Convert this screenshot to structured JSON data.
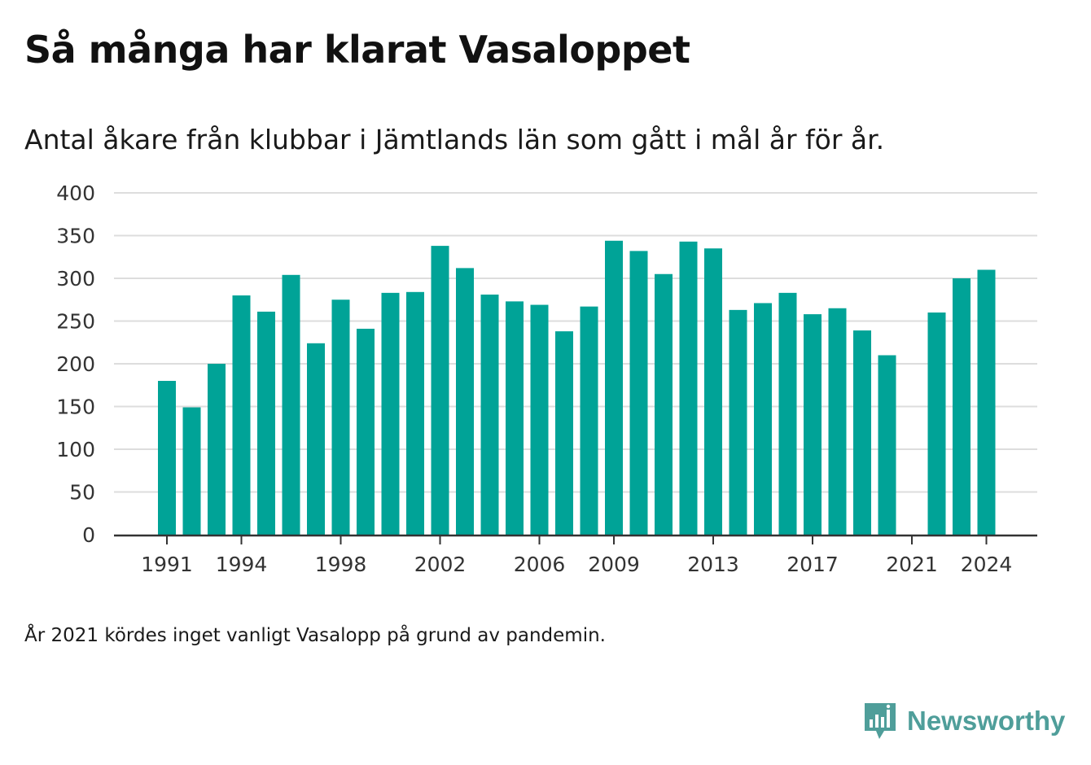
{
  "title": "Så många har klarat Vasaloppet",
  "subtitle": "Antal åkare från klubbar i Jämtlands län som gått i mål år för år.",
  "note": "År 2021 kördes inget vanligt Vasalopp på grund av pandemin.",
  "brand": {
    "name": "Newsworthy",
    "icon": "bar-chart-speech-bubble-icon"
  },
  "colors": {
    "bar": "#00a397",
    "grid": "#dddddd",
    "axis": "#333333",
    "brand": "#4f9e9a"
  },
  "chart_data": {
    "type": "bar",
    "title": "Så många har klarat Vasaloppet",
    "subtitle": "Antal åkare från klubbar i Jämtlands län som gått i mål år för år.",
    "xlabel": "",
    "ylabel": "",
    "ylim": [
      0,
      400
    ],
    "yticks": [
      0,
      50,
      100,
      150,
      200,
      250,
      300,
      350,
      400
    ],
    "xtick_labels": [
      "1991",
      "1994",
      "1998",
      "2002",
      "2006",
      "2009",
      "2013",
      "2017",
      "2021",
      "2024"
    ],
    "grid": true,
    "categories": [
      "1991",
      "1992",
      "1993",
      "1994",
      "1995",
      "1996",
      "1997",
      "1998",
      "1999",
      "2000",
      "2001",
      "2002",
      "2003",
      "2004",
      "2005",
      "2006",
      "2007",
      "2008",
      "2009",
      "2010",
      "2011",
      "2012",
      "2013",
      "2014",
      "2015",
      "2016",
      "2017",
      "2018",
      "2019",
      "2020",
      "2021",
      "2022",
      "2023",
      "2024"
    ],
    "values": [
      180,
      149,
      200,
      280,
      261,
      304,
      224,
      275,
      241,
      283,
      284,
      338,
      312,
      281,
      273,
      269,
      238,
      267,
      344,
      332,
      305,
      343,
      335,
      263,
      271,
      283,
      258,
      265,
      239,
      210,
      null,
      260,
      300,
      310
    ]
  }
}
